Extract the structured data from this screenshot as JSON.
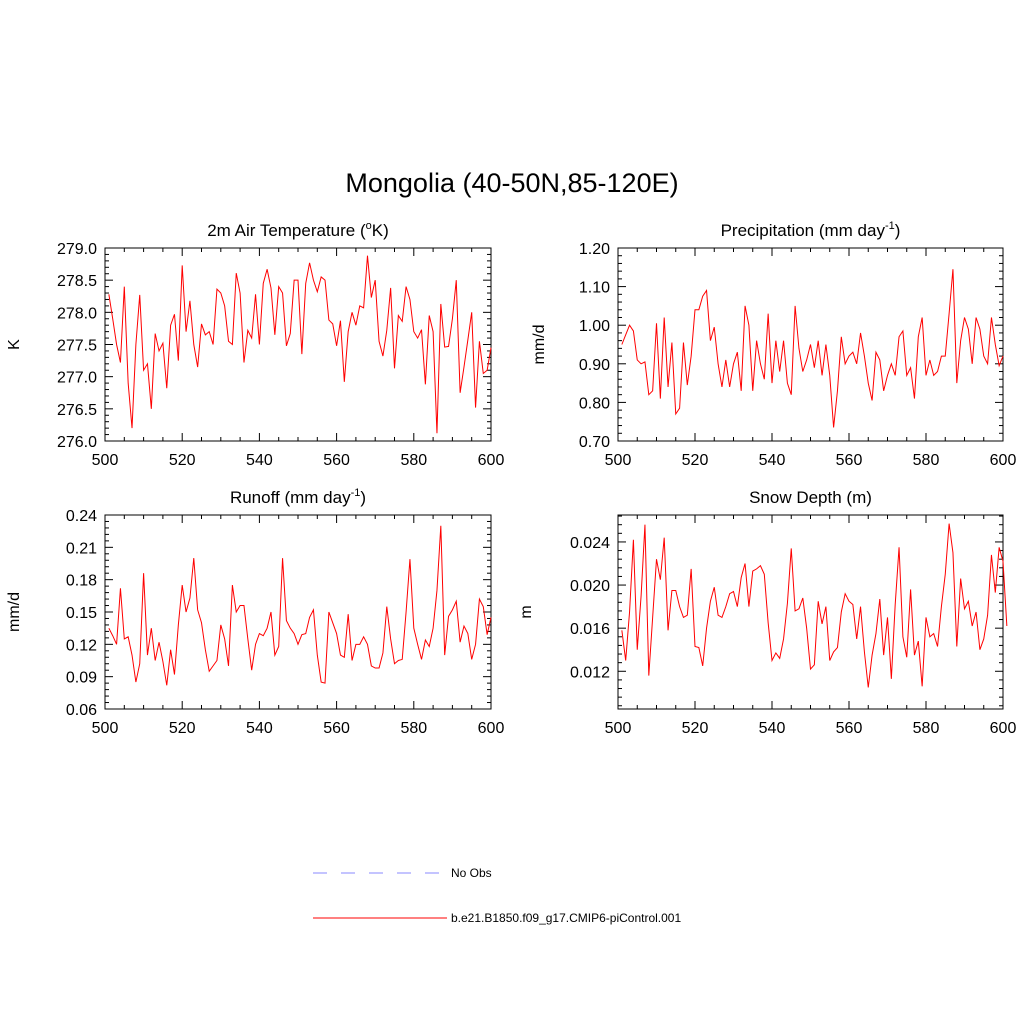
{
  "title": "Mongolia (40-50N,85-120E)",
  "colors": {
    "model_line": "#ff0000",
    "obs_line": "#8a8aff",
    "axis": "#000000"
  },
  "legend": {
    "obs_label": "No Obs",
    "model_label": "b.e21.B1850.f09_g17.CMIP6-piControl.001"
  },
  "chart_data": [
    {
      "type": "line",
      "title": "2m Air Temperature (°K)",
      "title_parts": [
        "2m Air Temperature (",
        "o",
        "K)"
      ],
      "ylabel": "K",
      "xlim": [
        500,
        600
      ],
      "ylim": [
        276.0,
        279.0
      ],
      "xticks": [
        500,
        520,
        540,
        560,
        580,
        600
      ],
      "xtick_labels": [
        "500",
        "520",
        "540",
        "560",
        "580",
        "600"
      ],
      "yticks": [
        276.0,
        276.5,
        277.0,
        277.5,
        278.0,
        278.5,
        279.0
      ],
      "ytick_labels": [
        "276.0",
        "276.5",
        "277.0",
        "277.5",
        "278.0",
        "278.5",
        "279.0"
      ],
      "x_start": 501,
      "series": [
        {
          "name": "b.e21.B1850.f09_g17.CMIP6-piControl.001",
          "values": [
            278.28,
            277.9,
            277.5,
            277.22,
            278.4,
            276.9,
            276.2,
            277.5,
            278.27,
            277.1,
            277.2,
            276.5,
            277.67,
            277.4,
            277.52,
            276.82,
            277.8,
            277.97,
            277.25,
            278.73,
            277.7,
            278.18,
            277.5,
            277.15,
            277.82,
            277.65,
            277.7,
            277.5,
            278.36,
            278.3,
            278.1,
            277.55,
            277.5,
            278.61,
            278.3,
            277.22,
            277.72,
            277.6,
            278.28,
            277.5,
            278.45,
            278.67,
            278.38,
            277.65,
            278.4,
            278.3,
            277.48,
            277.67,
            278.5,
            278.5,
            277.35,
            278.45,
            278.77,
            278.5,
            278.32,
            278.55,
            278.5,
            277.88,
            277.82,
            277.48,
            277.87,
            276.92,
            277.7,
            278.0,
            277.8,
            278.1,
            278.07,
            278.88,
            278.23,
            278.5,
            277.55,
            277.32,
            277.72,
            278.38,
            277.13,
            277.95,
            277.86,
            278.4,
            278.2,
            277.7,
            277.6,
            277.73,
            276.88,
            277.95,
            277.7,
            276.12,
            278.13,
            277.46,
            277.47,
            277.9,
            278.5,
            276.75,
            277.15,
            277.57,
            278.0,
            276.52,
            277.55,
            277.05,
            277.1,
            277.45
          ]
        }
      ]
    },
    {
      "type": "line",
      "title": "Precipitation (mm day-1)",
      "title_parts": [
        "Precipitation (mm day",
        "-1",
        ")"
      ],
      "ylabel": "mm/d",
      "xlim": [
        500,
        600
      ],
      "ylim": [
        0.7,
        1.2
      ],
      "xticks": [
        500,
        520,
        540,
        560,
        580,
        600
      ],
      "xtick_labels": [
        "500",
        "520",
        "540",
        "560",
        "580",
        "600"
      ],
      "yticks": [
        0.7,
        0.8,
        0.9,
        1.0,
        1.1,
        1.2
      ],
      "ytick_labels": [
        "0.70",
        "0.80",
        "0.90",
        "1.00",
        "1.10",
        "1.20"
      ],
      "x_start": 501,
      "series": [
        {
          "name": "b.e21.B1850.f09_g17.CMIP6-piControl.001",
          "values": [
            0.95,
            0.975,
            1.0,
            0.985,
            0.91,
            0.9,
            0.905,
            0.82,
            0.83,
            1.005,
            0.81,
            1.02,
            0.84,
            0.955,
            0.77,
            0.785,
            0.955,
            0.845,
            0.92,
            1.04,
            1.04,
            1.075,
            1.09,
            0.96,
            0.995,
            0.9,
            0.84,
            0.91,
            0.84,
            0.9,
            0.93,
            0.83,
            1.05,
            1.0,
            0.83,
            0.96,
            0.9,
            0.86,
            1.03,
            0.85,
            0.96,
            0.88,
            0.96,
            0.85,
            0.82,
            1.05,
            0.94,
            0.88,
            0.91,
            0.95,
            0.89,
            0.96,
            0.87,
            0.95,
            0.87,
            0.735,
            0.83,
            0.97,
            0.9,
            0.92,
            0.93,
            0.9,
            0.98,
            0.92,
            0.85,
            0.805,
            0.93,
            0.91,
            0.83,
            0.87,
            0.9,
            0.87,
            0.97,
            0.985,
            0.87,
            0.89,
            0.81,
            0.97,
            1.02,
            0.87,
            0.91,
            0.87,
            0.88,
            0.92,
            0.92,
            1.03,
            1.145,
            0.85,
            0.96,
            1.02,
            0.99,
            0.9,
            1.02,
            0.99,
            0.92,
            0.9,
            1.02,
            0.95,
            0.895,
            0.92
          ]
        }
      ]
    },
    {
      "type": "line",
      "title": "Runoff (mm day-1)",
      "title_parts": [
        "Runoff (mm day",
        "-1",
        ")"
      ],
      "ylabel": "mm/d",
      "xlim": [
        500,
        600
      ],
      "ylim": [
        0.06,
        0.24
      ],
      "xticks": [
        500,
        520,
        540,
        560,
        580,
        600
      ],
      "xtick_labels": [
        "500",
        "520",
        "540",
        "560",
        "580",
        "600"
      ],
      "yticks": [
        0.06,
        0.09,
        0.12,
        0.15,
        0.18,
        0.21,
        0.24
      ],
      "ytick_labels": [
        "0.06",
        "0.09",
        "0.12",
        "0.15",
        "0.18",
        "0.21",
        "0.24"
      ],
      "x_start": 501,
      "series": [
        {
          "name": "b.e21.B1850.f09_g17.CMIP6-piControl.001",
          "values": [
            0.135,
            0.128,
            0.12,
            0.172,
            0.125,
            0.127,
            0.11,
            0.085,
            0.102,
            0.186,
            0.11,
            0.135,
            0.105,
            0.122,
            0.104,
            0.082,
            0.115,
            0.092,
            0.138,
            0.175,
            0.15,
            0.163,
            0.2,
            0.152,
            0.14,
            0.115,
            0.095,
            0.1,
            0.105,
            0.138,
            0.125,
            0.1,
            0.175,
            0.15,
            0.156,
            0.156,
            0.125,
            0.096,
            0.12,
            0.13,
            0.128,
            0.135,
            0.15,
            0.11,
            0.118,
            0.2,
            0.142,
            0.135,
            0.13,
            0.12,
            0.129,
            0.13,
            0.145,
            0.152,
            0.11,
            0.085,
            0.084,
            0.15,
            0.14,
            0.13,
            0.11,
            0.108,
            0.148,
            0.105,
            0.12,
            0.12,
            0.127,
            0.12,
            0.1,
            0.098,
            0.098,
            0.112,
            0.155,
            0.125,
            0.102,
            0.105,
            0.106,
            0.15,
            0.199,
            0.135,
            0.12,
            0.106,
            0.124,
            0.118,
            0.135,
            0.17,
            0.23,
            0.11,
            0.146,
            0.152,
            0.16,
            0.122,
            0.137,
            0.13,
            0.106,
            0.12,
            0.162,
            0.155,
            0.129,
            0.145
          ]
        }
      ]
    },
    {
      "type": "line",
      "title": "Snow Depth (m)",
      "title_parts": [
        "Snow Depth (m)",
        "",
        ""
      ],
      "ylabel": "m",
      "xlim": [
        500,
        600
      ],
      "ylim": [
        0.0085,
        0.0265
      ],
      "xticks": [
        500,
        520,
        540,
        560,
        580,
        600
      ],
      "xtick_labels": [
        "500",
        "520",
        "540",
        "560",
        "580",
        "600"
      ],
      "yticks": [
        0.012,
        0.016,
        0.02,
        0.024
      ],
      "ytick_labels": [
        "0.012",
        "0.016",
        "0.020",
        "0.024"
      ],
      "x_start": 501,
      "series": [
        {
          "name": "b.e21.B1850.f09_g17.CMIP6-piControl.001",
          "values": [
            0.0158,
            0.013,
            0.0175,
            0.0242,
            0.014,
            0.019,
            0.0256,
            0.0116,
            0.017,
            0.0224,
            0.0205,
            0.0244,
            0.0158,
            0.0195,
            0.0195,
            0.018,
            0.017,
            0.0172,
            0.0215,
            0.0143,
            0.0142,
            0.0125,
            0.016,
            0.0185,
            0.0198,
            0.0172,
            0.017,
            0.018,
            0.0192,
            0.0194,
            0.018,
            0.0207,
            0.022,
            0.018,
            0.0213,
            0.0215,
            0.0218,
            0.021,
            0.0165,
            0.013,
            0.0137,
            0.0132,
            0.015,
            0.0183,
            0.0234,
            0.0176,
            0.0178,
            0.0188,
            0.016,
            0.0122,
            0.0126,
            0.0185,
            0.0164,
            0.018,
            0.013,
            0.0138,
            0.0142,
            0.0175,
            0.0192,
            0.0185,
            0.0182,
            0.015,
            0.018,
            0.0138,
            0.0105,
            0.0135,
            0.0155,
            0.0187,
            0.0135,
            0.017,
            0.0113,
            0.0182,
            0.0235,
            0.0152,
            0.0133,
            0.0196,
            0.0135,
            0.0148,
            0.0106,
            0.017,
            0.0152,
            0.0155,
            0.0143,
            0.018,
            0.021,
            0.0257,
            0.023,
            0.0143,
            0.0206,
            0.0178,
            0.0185,
            0.0162,
            0.0175,
            0.014,
            0.015,
            0.0172,
            0.0228,
            0.0193,
            0.0235,
            0.0222,
            0.0162
          ]
        }
      ]
    }
  ]
}
